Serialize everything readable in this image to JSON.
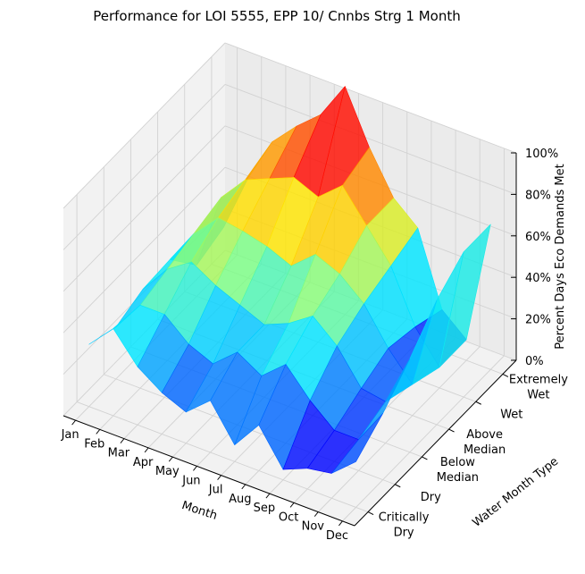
{
  "chart_data": {
    "type": "surface3d",
    "title": "Performance for LOI 5555, EPP 10/ Cnnbs Strg 1 Month",
    "xlabel": "Month",
    "ylabel": "Water Month Type",
    "zlabel": "Percent Days Eco Demands Met",
    "x_categories": [
      "Jan",
      "Feb",
      "Mar",
      "Apr",
      "May",
      "Jun",
      "Jul",
      "Aug",
      "Sep",
      "Oct",
      "Nov",
      "Dec"
    ],
    "y_categories": [
      [
        "Critically",
        "Dry"
      ],
      [
        "Dry"
      ],
      [
        "Below",
        "Median"
      ],
      [
        "Above",
        "Median"
      ],
      [
        "Wet"
      ],
      [
        "Extremely",
        "Wet"
      ]
    ],
    "z_ticks": [
      "0%",
      "20%",
      "40%",
      "60%",
      "80%",
      "100%"
    ],
    "zlim": [
      0,
      100
    ],
    "colormap": "jet",
    "colormap_stops": [
      "#00007f",
      "#0000ff",
      "#007fff",
      "#00e5ff",
      "#7fff7f",
      "#ffe500",
      "#ff7f00",
      "#ff0000",
      "#7f0000"
    ],
    "values": [
      [
        30,
        25,
        30,
        31,
        15,
        20
      ],
      [
        42,
        40,
        44,
        48,
        52,
        48
      ],
      [
        28,
        40,
        52,
        60,
        65,
        70
      ],
      [
        20,
        30,
        45,
        58,
        70,
        82
      ],
      [
        15,
        25,
        40,
        55,
        75,
        92
      ],
      [
        25,
        35,
        35,
        50,
        70,
        110
      ],
      [
        8,
        28,
        40,
        60,
        80,
        85
      ],
      [
        22,
        38,
        48,
        55,
        65,
        65
      ],
      [
        5,
        25,
        38,
        45,
        50,
        55
      ],
      [
        10,
        15,
        22,
        28,
        25,
        20
      ],
      [
        12,
        15,
        20,
        15,
        10,
        10
      ],
      [
        22,
        32,
        45,
        60,
        70,
        70
      ]
    ]
  }
}
